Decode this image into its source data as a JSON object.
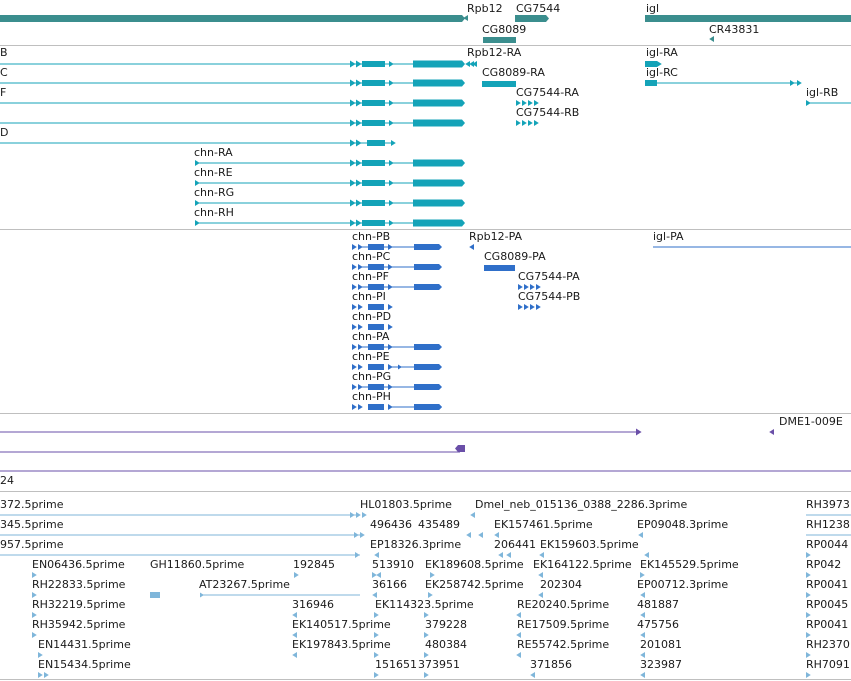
{
  "browser": {
    "colors": {
      "gene": "#3b8e8e",
      "transcript": "#14a3b8",
      "protein": "#2f6fc9",
      "other": "#6a4fa8",
      "est": "#7fb6da",
      "separator": "#bfbfbf"
    },
    "genes": {
      "labels": [
        "Rpb12",
        "CG7544",
        "igl",
        "CG8089",
        "CR43831"
      ]
    },
    "transcripts": {
      "labels": [
        "B",
        "C",
        "F",
        "D",
        "Rpb12-RA",
        "CG8089-RA",
        "CG7544-RA",
        "CG7544-RB",
        "igl-RA",
        "igl-RC",
        "igl-RB",
        "chn-RA",
        "chn-RE",
        "chn-RG",
        "chn-RH"
      ]
    },
    "proteins": {
      "labels": [
        "chn-PB",
        "chn-PC",
        "chn-PF",
        "chn-PI",
        "chn-PD",
        "chn-PA",
        "chn-PE",
        "chn-PG",
        "chn-PH",
        "Rpb12-PA",
        "CG8089-PA",
        "CG7544-PA",
        "CG7544-PB",
        "igl-PA"
      ]
    },
    "other": {
      "labels": [
        "DME1-009E",
        "24"
      ]
    },
    "ests": {
      "labels": [
        "372.5prime",
        "345.5prime",
        "957.5prime",
        "HL01803.5prime",
        "Dmel_neb_015136_0388_2286.3prime",
        "RH3973",
        "496436",
        "435489",
        "EK157461.5prime",
        "EP09048.3prime",
        "RH1238",
        "EP18326.3prime",
        "206441",
        "EK159603.5prime",
        "RP0044",
        "EN06436.5prime",
        "GH11860.5prime",
        "192845",
        "513910",
        "EK189608.5prime",
        "EK164122.5prime",
        "EK145529.5prime",
        "RP042",
        "RH22833.5prime",
        "AT23267.5prime",
        "36166",
        "EK258742.5prime",
        "202304",
        "EP00712.3prime",
        "RP0041",
        "RH32219.5prime",
        "316946",
        "EK114323.5prime",
        "RE20240.5prime",
        "481887",
        "RP0045",
        "RH35942.5prime",
        "EK140517.5prime",
        "379228",
        "RE17509.5prime",
        "475756",
        "RP0041",
        "EN14431.5prime",
        "EK197843.5prime",
        "480384",
        "RE55742.5prime",
        "201081",
        "RH2370",
        "EN15434.5prime",
        "151651",
        "373951",
        "371856",
        "323987",
        "RH7091"
      ]
    }
  }
}
